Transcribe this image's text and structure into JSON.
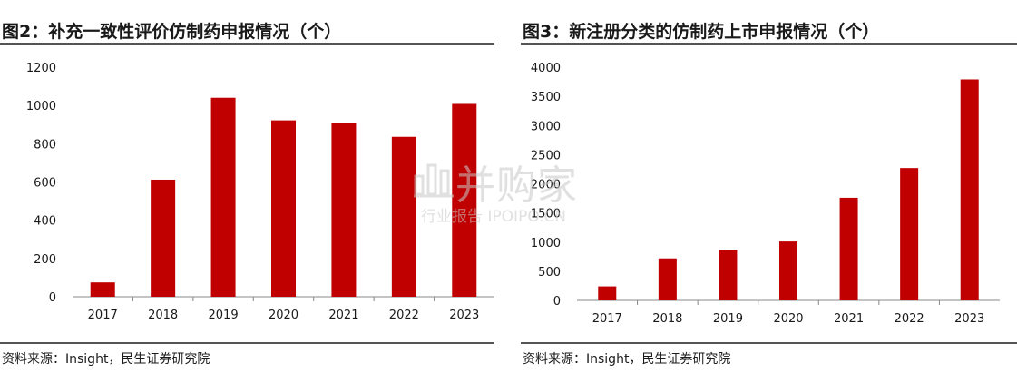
{
  "chart_data": [
    {
      "type": "bar",
      "title": "图2：补充一致性评价仿制药申报情况（个）",
      "categories": [
        "2017",
        "2018",
        "2019",
        "2020",
        "2021",
        "2022",
        "2023"
      ],
      "values": [
        75,
        612,
        1040,
        922,
        906,
        836,
        1008
      ],
      "ylim": [
        0,
        1200
      ],
      "yticks": [
        0,
        200,
        400,
        600,
        800,
        1000,
        1200
      ],
      "bar_color": "#C00000",
      "grid": false,
      "source": "资料来源：Insight，民生证券研究院"
    },
    {
      "type": "bar",
      "title": "图3：新注册分类的仿制药上市申报情况（个）",
      "categories": [
        "2017",
        "2018",
        "2019",
        "2020",
        "2021",
        "2022",
        "2023"
      ],
      "values": [
        240,
        720,
        865,
        1010,
        1760,
        2270,
        3790
      ],
      "ylim": [
        0,
        4000
      ],
      "yticks": [
        0,
        500,
        1000,
        1500,
        2000,
        2500,
        3000,
        3500,
        4000
      ],
      "bar_color": "#C00000",
      "grid": false,
      "source": "资料来源：Insight，民生证券研究院"
    }
  ],
  "watermark": {
    "main": "并购家",
    "sub": "行业报告 IPOIPO.CN",
    "logo_icon": "building-chart-icon"
  }
}
